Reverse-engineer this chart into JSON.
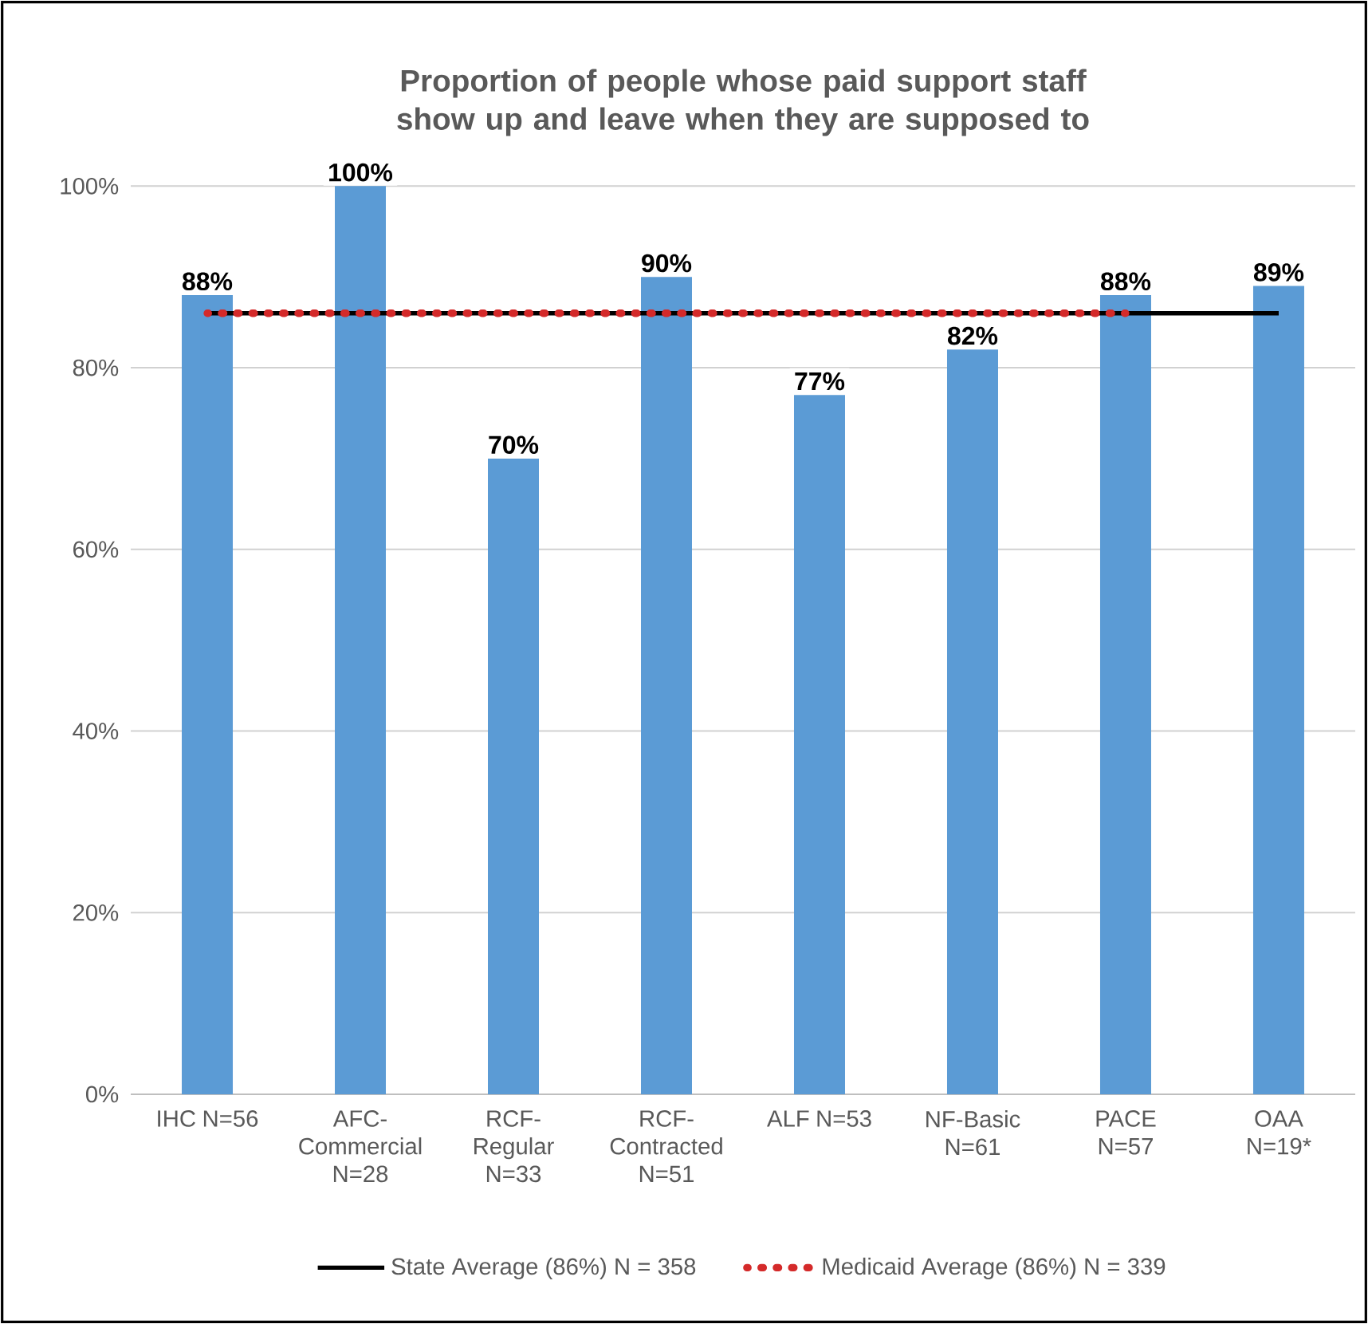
{
  "chart_data": {
    "type": "bar",
    "title": "Proportion of people whose paid support staff show up and leave when they are supposed to",
    "categories": [
      "IHC N=56",
      "AFC-Commercial N=28",
      "RCF-Regular N=33",
      "RCF-Contracted N=51",
      "ALF N=53",
      "NF-Basic N=61",
      "PACE N=57",
      "OAA N=19*"
    ],
    "series": [
      {
        "type": "bar",
        "color": "#5b9bd5",
        "values": [
          88,
          100,
          70,
          90,
          77,
          82,
          88,
          89
        ],
        "value_labels": [
          "88%",
          "100%",
          "70%",
          "90%",
          "77%",
          "82%",
          "88%",
          "89%"
        ]
      },
      {
        "type": "line",
        "name": "State Average (86%) N = 358",
        "color": "#000000",
        "line_style": "solid",
        "values": [
          86,
          86,
          86,
          86,
          86,
          86,
          86,
          86
        ]
      },
      {
        "type": "line",
        "name": "Medicaid Average (86%) N = 339",
        "color": "#d42a2a",
        "line_style": "dotted",
        "values": [
          86,
          86,
          86,
          86,
          86,
          86,
          86,
          null
        ]
      }
    ],
    "ylim": [
      0,
      100
    ],
    "yticks": [
      {
        "value": 0,
        "label": "0%"
      },
      {
        "value": 20,
        "label": "20%"
      },
      {
        "value": 40,
        "label": "40%"
      },
      {
        "value": 60,
        "label": "60%"
      },
      {
        "value": 80,
        "label": "80%"
      },
      {
        "value": 100,
        "label": "100%"
      }
    ],
    "grid": "y",
    "legend": "bottom"
  }
}
